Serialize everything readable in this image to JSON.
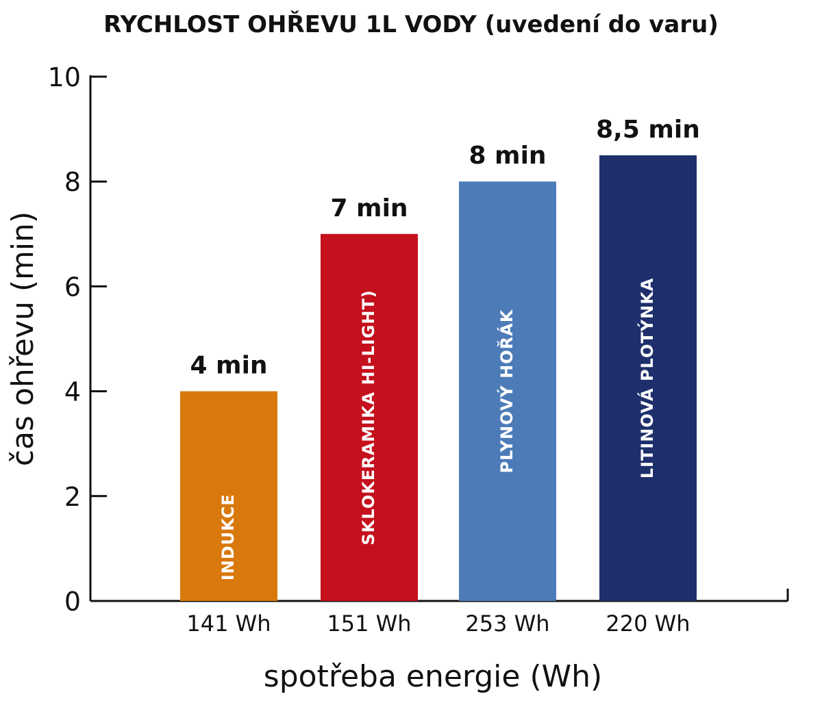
{
  "chart_data": {
    "type": "bar",
    "title": "RYCHLOST OHŘEVU 1L VODY (uvedení do varu)",
    "xlabel": "spotřeba energie (Wh)",
    "ylabel": "čas ohřevu (min)",
    "ylim": [
      0,
      10
    ],
    "yticks": [
      "0",
      "2",
      "4",
      "6",
      "8",
      "10"
    ],
    "grid": false,
    "categories": [
      "141 Wh",
      "151 Wh",
      "253 Wh",
      "220 Wh"
    ],
    "values": [
      4,
      7,
      8,
      8.5
    ],
    "value_labels": [
      "4 min",
      "7 min",
      "8 min",
      "8,5 min"
    ],
    "bar_labels": [
      "INDUKCE",
      "SKLOKERAMIKA HI-LIGHT)",
      "PLYNOVÝ HOŘÁK",
      "LITINOVÁ PLOTÝNKA"
    ],
    "colors": [
      "#d9780c",
      "#c5101d",
      "#4d7bb8",
      "#1e2f6c"
    ]
  }
}
